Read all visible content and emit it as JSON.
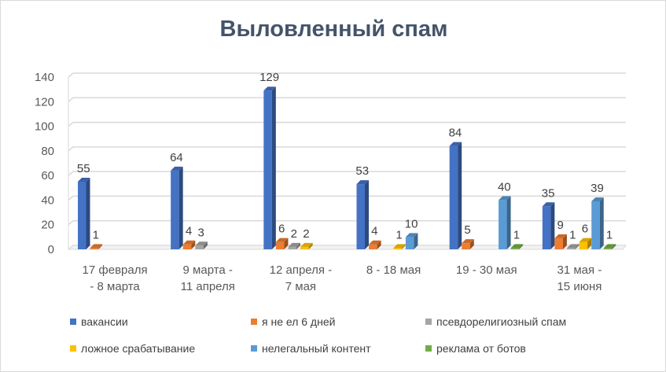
{
  "chart_data": {
    "type": "bar",
    "title": "Выловленный спам",
    "categories": [
      "17 февраля - 8 марта",
      "9 марта - 11 апреля",
      "12 апреля - 7 мая",
      "8 - 18 мая",
      "19 - 30 мая",
      "31 мая - 15 июня"
    ],
    "ylim": [
      0,
      140
    ],
    "yticks": [
      0,
      20,
      40,
      60,
      80,
      100,
      120,
      140
    ],
    "grid": true,
    "legend": "bottom",
    "series": [
      {
        "name": "вакансии",
        "color": "#4472c4",
        "values": [
          55,
          64,
          129,
          53,
          84,
          35
        ]
      },
      {
        "name": "я не ел 6 дней",
        "color": "#ed7d31",
        "values": [
          1,
          4,
          6,
          4,
          5,
          9
        ]
      },
      {
        "name": "псевдорелигиозный спам",
        "color": "#a5a5a5",
        "values": [
          null,
          3,
          2,
          null,
          null,
          1
        ]
      },
      {
        "name": "ложное срабатывание",
        "color": "#ffc000",
        "values": [
          null,
          null,
          2,
          1,
          null,
          6
        ]
      },
      {
        "name": "нелегальный контент",
        "color": "#5b9bd5",
        "values": [
          null,
          null,
          null,
          10,
          40,
          39
        ]
      },
      {
        "name": "реклама от ботов",
        "color": "#70ad47",
        "values": [
          null,
          null,
          null,
          null,
          1,
          1
        ]
      }
    ]
  }
}
